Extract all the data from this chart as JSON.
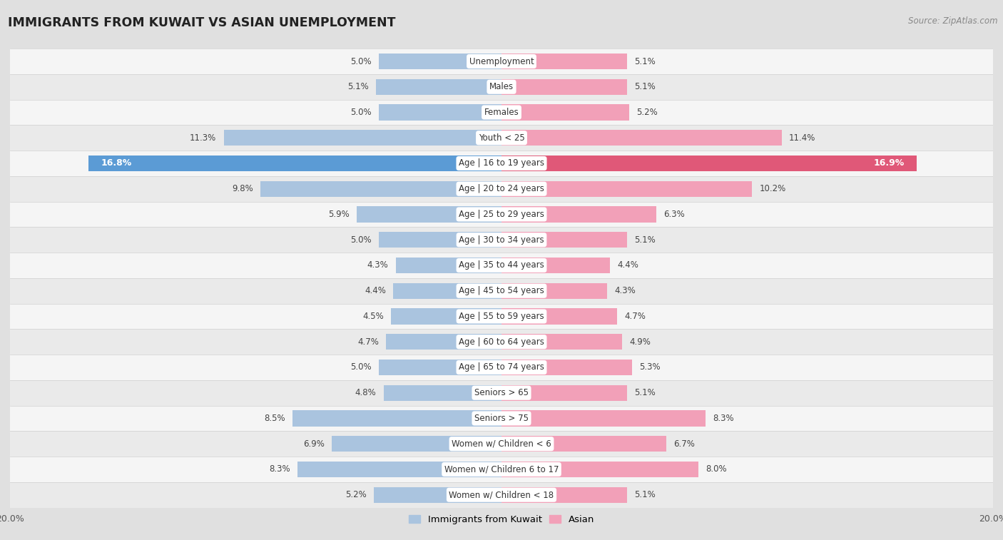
{
  "title": "IMMIGRANTS FROM KUWAIT VS ASIAN UNEMPLOYMENT",
  "source": "Source: ZipAtlas.com",
  "categories": [
    "Unemployment",
    "Males",
    "Females",
    "Youth < 25",
    "Age | 16 to 19 years",
    "Age | 20 to 24 years",
    "Age | 25 to 29 years",
    "Age | 30 to 34 years",
    "Age | 35 to 44 years",
    "Age | 45 to 54 years",
    "Age | 55 to 59 years",
    "Age | 60 to 64 years",
    "Age | 65 to 74 years",
    "Seniors > 65",
    "Seniors > 75",
    "Women w/ Children < 6",
    "Women w/ Children 6 to 17",
    "Women w/ Children < 18"
  ],
  "kuwait_values": [
    5.0,
    5.1,
    5.0,
    11.3,
    16.8,
    9.8,
    5.9,
    5.0,
    4.3,
    4.4,
    4.5,
    4.7,
    5.0,
    4.8,
    8.5,
    6.9,
    8.3,
    5.2
  ],
  "asian_values": [
    5.1,
    5.1,
    5.2,
    11.4,
    16.9,
    10.2,
    6.3,
    5.1,
    4.4,
    4.3,
    4.7,
    4.9,
    5.3,
    5.1,
    8.3,
    6.7,
    8.0,
    5.1
  ],
  "kuwait_color": "#aac4df",
  "asian_color": "#f2a0b8",
  "highlight_kuwait_color": "#5b9bd5",
  "highlight_asian_color": "#e05878",
  "highlight_row": 4,
  "row_colors": [
    "#f2f2f2",
    "#e8e8e8"
  ],
  "background_color": "#e8e8e8",
  "xlim": 20.0,
  "legend_kuwait": "Immigrants from Kuwait",
  "legend_asian": "Asian",
  "bar_height": 0.62
}
